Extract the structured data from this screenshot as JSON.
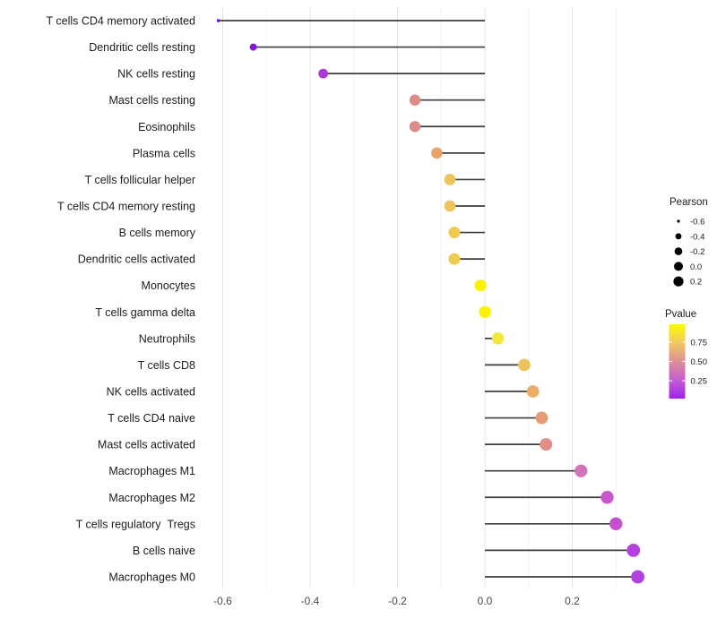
{
  "chart_data": {
    "type": "scatter",
    "subtype": "lollipop",
    "title": "",
    "xlabel": "",
    "ylabel": "",
    "grid": true,
    "xlim": [
      -0.655,
      0.355
    ],
    "x_ticks_major": [
      -0.6,
      -0.4,
      -0.2,
      0.0,
      0.2
    ],
    "x_tick_labels": [
      "-0.6",
      "-0.4",
      "-0.2",
      "0.0",
      "0.2"
    ],
    "x_ticks_minor": [
      -0.5,
      -0.3,
      -0.1,
      0.1,
      0.3
    ],
    "baseline_x": 0.0,
    "legend_position": "right",
    "categories": [
      "T cells CD4 memory activated",
      "Dendritic cells resting",
      "NK cells resting",
      "Mast cells resting",
      "Eosinophils",
      "Plasma cells",
      "T cells follicular helper",
      "T cells CD4 memory resting",
      "B cells memory",
      "Dendritic cells activated",
      "Monocytes",
      "T cells gamma delta",
      "Neutrophils",
      "T cells CD8",
      "NK cells activated",
      "T cells CD4 naive",
      "Mast cells activated",
      "Macrophages M1",
      "Macrophages M2",
      "T cells regulatory  Tregs",
      "B cells naive",
      "Macrophages M0"
    ],
    "series": [
      {
        "name": "Pearson",
        "values": [
          -0.61,
          -0.53,
          -0.37,
          -0.16,
          -0.16,
          -0.11,
          -0.08,
          -0.08,
          -0.07,
          -0.07,
          -0.01,
          0.0,
          0.03,
          0.09,
          0.11,
          0.13,
          0.14,
          0.22,
          0.28,
          0.3,
          0.34,
          0.35
        ]
      },
      {
        "name": "Pvalue",
        "values": [
          0.03,
          0.08,
          0.15,
          0.5,
          0.5,
          0.6,
          0.72,
          0.72,
          0.78,
          0.78,
          0.97,
          0.97,
          0.9,
          0.74,
          0.65,
          0.58,
          0.52,
          0.33,
          0.26,
          0.24,
          0.16,
          0.16
        ]
      }
    ],
    "points": [
      {
        "label": "T cells CD4 memory activated",
        "pearson": -0.61,
        "pvalue": 0.03,
        "color": "#6a0ad2",
        "r": 1.8
      },
      {
        "label": "Dendritic cells resting",
        "pearson": -0.53,
        "pvalue": 0.08,
        "color": "#8a14e6",
        "r": 4.0
      },
      {
        "label": "NK cells resting",
        "pearson": -0.37,
        "pvalue": 0.15,
        "color": "#ab3ad6",
        "r": 5.4
      },
      {
        "label": "Mast cells resting",
        "pearson": -0.16,
        "pvalue": 0.5,
        "color": "#de8b8b",
        "r": 6.2
      },
      {
        "label": "Eosinophils",
        "pearson": -0.16,
        "pvalue": 0.5,
        "color": "#de8b8b",
        "r": 6.2
      },
      {
        "label": "Plasma cells",
        "pearson": -0.11,
        "pvalue": 0.6,
        "color": "#e8a36b",
        "r": 6.3
      },
      {
        "label": "T cells follicular helper",
        "pearson": -0.08,
        "pvalue": 0.72,
        "color": "#eec45c",
        "r": 6.4
      },
      {
        "label": "T cells CD4 memory resting",
        "pearson": -0.08,
        "pvalue": 0.72,
        "color": "#eec45c",
        "r": 6.4
      },
      {
        "label": "B cells memory",
        "pearson": -0.07,
        "pvalue": 0.78,
        "color": "#efcc4f",
        "r": 6.5
      },
      {
        "label": "Dendritic cells activated",
        "pearson": -0.07,
        "pvalue": 0.78,
        "color": "#efcc4f",
        "r": 6.5
      },
      {
        "label": "Monocytes",
        "pearson": -0.01,
        "pvalue": 0.97,
        "color": "#fbf300",
        "r": 6.6
      },
      {
        "label": "T cells gamma delta",
        "pearson": 0.0,
        "pvalue": 0.97,
        "color": "#fbf300",
        "r": 6.7
      },
      {
        "label": "Neutrophils",
        "pearson": 0.03,
        "pvalue": 0.9,
        "color": "#f5e83a",
        "r": 6.8
      },
      {
        "label": "T cells CD8",
        "pearson": 0.09,
        "pvalue": 0.74,
        "color": "#edc25e",
        "r": 6.9
      },
      {
        "label": "NK cells activated",
        "pearson": 0.11,
        "pvalue": 0.65,
        "color": "#e9ad68",
        "r": 6.9
      },
      {
        "label": "T cells CD4 naive",
        "pearson": 0.13,
        "pvalue": 0.58,
        "color": "#e59b76",
        "r": 7.0
      },
      {
        "label": "Mast cells activated",
        "pearson": 0.14,
        "pvalue": 0.52,
        "color": "#e28e87",
        "r": 7.0
      },
      {
        "label": "Macrophages M1",
        "pearson": 0.22,
        "pvalue": 0.33,
        "color": "#d573b8",
        "r": 7.1
      },
      {
        "label": "Macrophages M2",
        "pearson": 0.28,
        "pvalue": 0.26,
        "color": "#c957cb",
        "r": 7.2
      },
      {
        "label": "T cells regulatory  Tregs",
        "pearson": 0.3,
        "pvalue": 0.24,
        "color": "#c450d0",
        "r": 7.2
      },
      {
        "label": "B cells naive",
        "pearson": 0.34,
        "pvalue": 0.16,
        "color": "#b53ede",
        "r": 7.4
      },
      {
        "label": "Macrophages M0",
        "pearson": 0.35,
        "pvalue": 0.16,
        "color": "#b53ede",
        "r": 7.4
      }
    ],
    "size_legend": {
      "title": "Pearson",
      "entries": [
        {
          "label": "-0.6",
          "r": 1.6
        },
        {
          "label": "-0.4",
          "r": 3.4
        },
        {
          "label": "-0.2",
          "r": 4.3
        },
        {
          "label": "0.0",
          "r": 5.0
        },
        {
          "label": "0.2",
          "r": 5.6
        }
      ]
    },
    "color_legend": {
      "title": "Pvalue",
      "domain": [
        0.02,
        0.98
      ],
      "ticks": [
        {
          "label": "0.75",
          "value": 0.75
        },
        {
          "label": "0.50",
          "value": 0.5
        },
        {
          "label": "0.25",
          "value": 0.25
        }
      ],
      "gradient_top_to_bottom": [
        "#fdfb00",
        "#f1c862",
        "#dd8f96",
        "#c45ed2",
        "#9c24e8"
      ]
    },
    "style_colors": {
      "stem": "#3d3d3d",
      "grid_major": "#e4e4e4",
      "grid_minor": "#f2f2f2",
      "axis_text": "#4a4a4a",
      "category_text": "#1c1c1c",
      "legend_text": "#1c1c1c",
      "legend_dot": "#000000"
    }
  }
}
